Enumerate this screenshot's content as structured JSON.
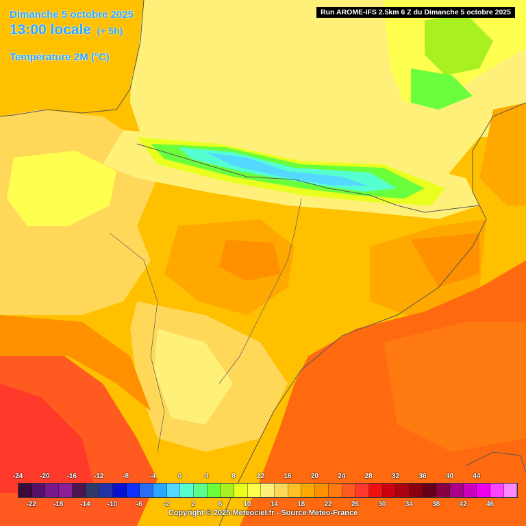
{
  "header": {
    "date": "Dimanche 5 octobre 2025",
    "time": "13:00 locale",
    "offset": "(+ 5h)",
    "variable": "Température 2M (°C)"
  },
  "run_info": "Run AROME-IFS 2.5km 6 Z du Dimanche 5 octobre 2025",
  "legend": {
    "top_labels": [
      "-24",
      "-20",
      "-16",
      "-12",
      "-8",
      "-4",
      "0",
      "4",
      "8",
      "12",
      "16",
      "20",
      "24",
      "28",
      "32",
      "36",
      "40",
      "44"
    ],
    "bottom_labels": [
      "-22",
      "-18",
      "-14",
      "-10",
      "-6",
      "-2",
      "2",
      "6",
      "10",
      "14",
      "18",
      "22",
      "26",
      "30",
      "34",
      "38",
      "42",
      "46"
    ],
    "colors": [
      "#3a0a3a",
      "#55116a",
      "#7a1a8a",
      "#8c1e9a",
      "#4e1450",
      "#303a6a",
      "#2233aa",
      "#0a10d0",
      "#1030ff",
      "#2a6ef5",
      "#2aa8ff",
      "#55d8ff",
      "#56ffd0",
      "#5dff8a",
      "#6aff3c",
      "#a8f020",
      "#e8ff20",
      "#ffff50",
      "#fff07a",
      "#ffd85a",
      "#ffc02a",
      "#ffa800",
      "#ff9000",
      "#ff7a10",
      "#ff5a20",
      "#ff3a2a",
      "#ee1010",
      "#cc0010",
      "#aa0010",
      "#880010",
      "#660018",
      "#880044",
      "#aa0088",
      "#cc00bb",
      "#ee00ee",
      "#ff44ff",
      "#ff88ff"
    ]
  },
  "colors": {
    "title": "#2aa8ff",
    "sea_warm": "#ff6a10",
    "plain_warm": "#ffc000",
    "mountains_cool": "#55d8ff"
  },
  "copyright": "Copyright © 2025 Meteociel.fr - Source Meteo-France"
}
